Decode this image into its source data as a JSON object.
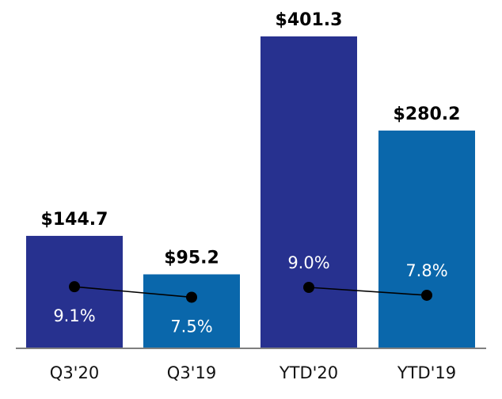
{
  "chart_data": {
    "type": "bar",
    "title": "",
    "xlabel": "",
    "ylabel": "",
    "ylim": [
      0,
      401.3
    ],
    "grid": false,
    "categories": [
      "Q3'20",
      "Q3'19",
      "YTD'20",
      "YTD'19"
    ],
    "values": [
      144.7,
      95.2,
      401.3,
      280.2
    ],
    "value_labels": [
      "$144.7",
      "$95.2",
      "$401.3",
      "$280.2"
    ],
    "margin_series": {
      "type": "line",
      "values": [
        9.1,
        7.5,
        9.0,
        7.8
      ],
      "labels": [
        "9.1%",
        "7.5%",
        "9.0%",
        "7.8%"
      ],
      "segments": [
        [
          0,
          1
        ],
        [
          2,
          3
        ]
      ]
    },
    "colors": {
      "bars": [
        "#27318F",
        "#0A67AB",
        "#27318F",
        "#0A67AB"
      ],
      "axis": "#7F7F7F",
      "marker": "#000000",
      "line": "#000000",
      "value_label": "#000000",
      "pct_label": "#FFFFFF"
    }
  }
}
